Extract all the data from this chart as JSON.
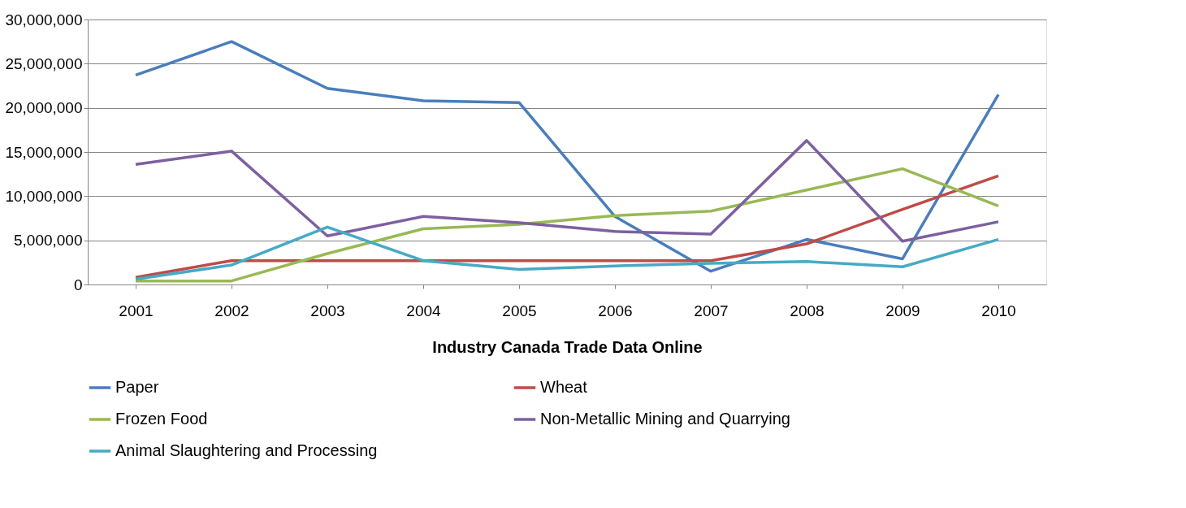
{
  "chart_data": {
    "type": "line",
    "xlabel": "Industry Canada Trade Data Online",
    "categories": [
      "2001",
      "2002",
      "2003",
      "2004",
      "2005",
      "2006",
      "2007",
      "2008",
      "2009",
      "2010"
    ],
    "ylim": [
      0,
      30000000
    ],
    "yticks": [
      0,
      {
        "value": 5000000,
        "label": "5,000,000"
      },
      {
        "value": 10000000,
        "label": "10,000,000"
      },
      {
        "value": 15000000,
        "label": "15,000,000"
      },
      {
        "value": 20000000,
        "label": "20,000,000"
      },
      {
        "value": 25000000,
        "label": "25,000,000"
      },
      {
        "value": 30000000,
        "label": "30,000,000"
      }
    ],
    "grid": "y",
    "legend": "bottom",
    "marker": "none",
    "line_style": "solid",
    "series": [
      {
        "name": "Paper",
        "color": "#4a7ebb",
        "values": [
          23700000,
          27500000,
          22200000,
          20800000,
          20600000,
          7700000,
          1500000,
          5100000,
          2900000,
          21500000
        ]
      },
      {
        "name": "Wheat",
        "color": "#be4b48",
        "values": [
          800000,
          2700000,
          2700000,
          2700000,
          2700000,
          2700000,
          2700000,
          4600000,
          8500000,
          12300000
        ]
      },
      {
        "name": "Frozen Food",
        "color": "#98b954",
        "values": [
          400000,
          400000,
          3500000,
          6300000,
          6800000,
          7800000,
          8300000,
          10700000,
          13100000,
          8900000
        ]
      },
      {
        "name": "Non-Metallic Mining and Quarrying",
        "color": "#7d60a0",
        "values": [
          13600000,
          15100000,
          5500000,
          7700000,
          7000000,
          6000000,
          5700000,
          16300000,
          4900000,
          7100000
        ]
      },
      {
        "name": "Animal Slaughtering and Processing",
        "color": "#46aac5",
        "values": [
          600000,
          2200000,
          6500000,
          2700000,
          1700000,
          2100000,
          2400000,
          2600000,
          2000000,
          5100000
        ]
      }
    ]
  }
}
